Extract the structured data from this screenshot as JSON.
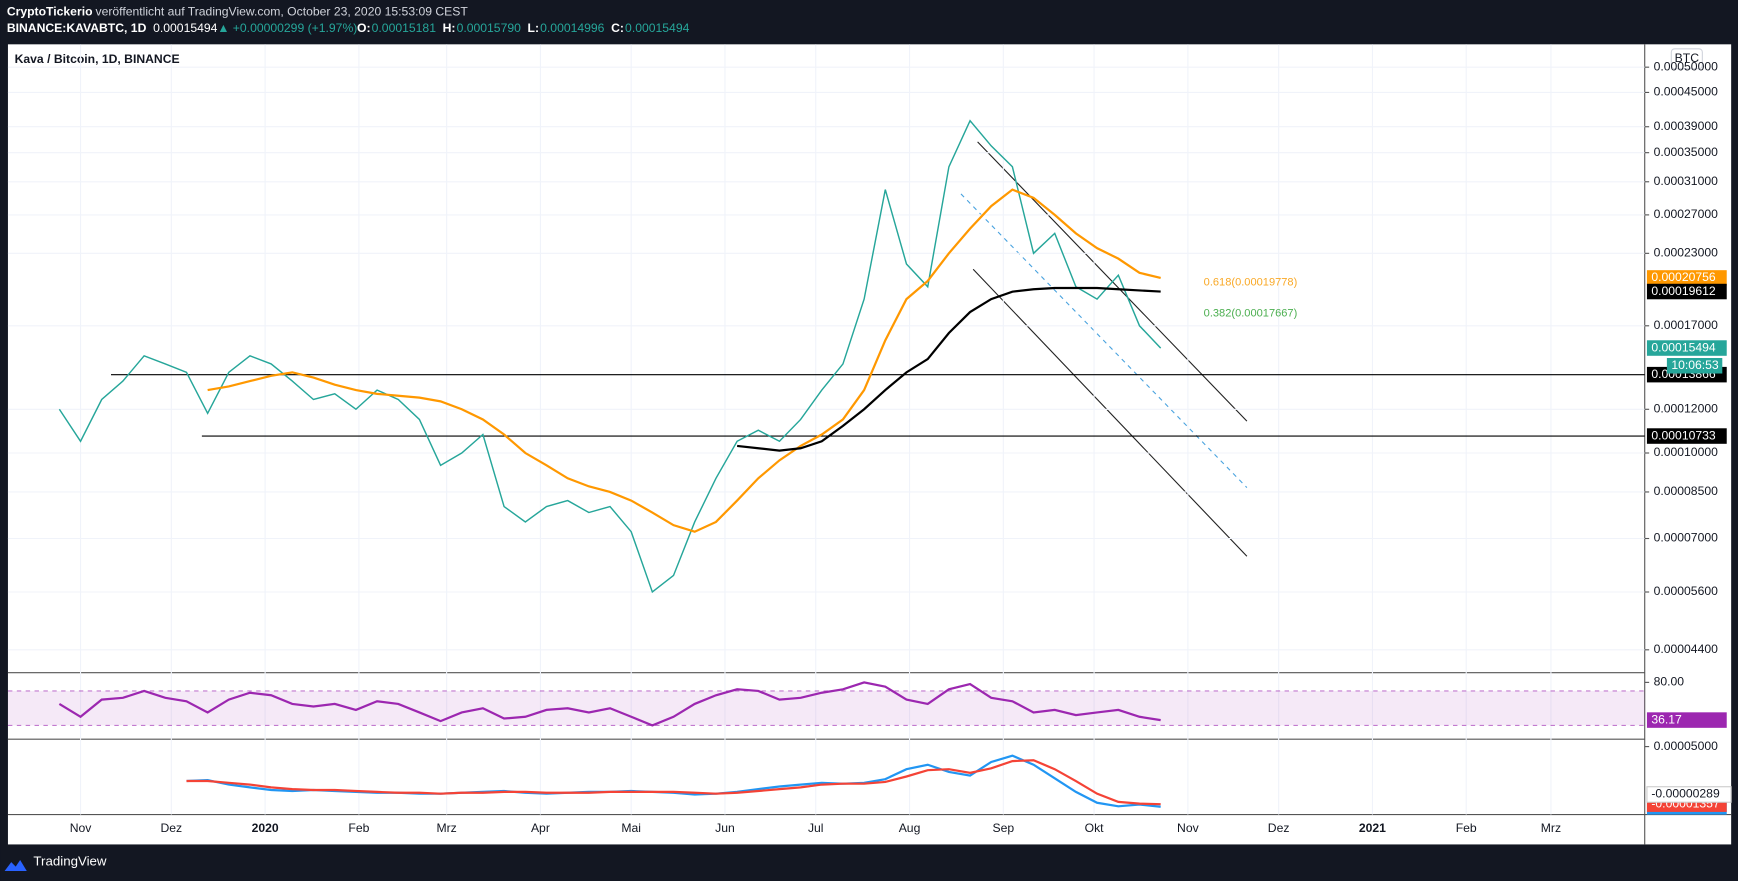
{
  "header": {
    "author": "CryptoTickerio",
    "published": "veröffentlicht auf TradingView.com, October 23, 2020 15:53:09 CEST",
    "symbol": "BINANCE:KAVABTC, 1D",
    "last": "0.00015494",
    "change": "▲ +0.00000299 (+1.97%)",
    "ohlc": [
      {
        "key": "O:",
        "value": "0.00015181"
      },
      {
        "key": "H:",
        "value": "0.00015790"
      },
      {
        "key": "L:",
        "value": "0.00014996"
      },
      {
        "key": "C:",
        "value": "0.00015494"
      }
    ]
  },
  "footer": {
    "brand": "TradingView"
  },
  "chart_data": [
    {
      "type": "line",
      "title": "Kava / Bitcoin, 1D, BINANCE",
      "currency": "BTC",
      "log_scale": true,
      "grid": true,
      "countdown": "10:06:53",
      "x": [
        0,
        7,
        14,
        21,
        28,
        35,
        42,
        49,
        56,
        63,
        70,
        77,
        84,
        91,
        98,
        105,
        112,
        119,
        126,
        133,
        140,
        147,
        154,
        161,
        168,
        175,
        182,
        189,
        196,
        203,
        210,
        217,
        224,
        231,
        238,
        245,
        252,
        259,
        266,
        273,
        280,
        287,
        294,
        301,
        308,
        315,
        322,
        329,
        336,
        343,
        350,
        357,
        364
      ],
      "xlim": [
        -17,
        524
      ],
      "xticks": [
        {
          "value": 7,
          "label": "Nov"
        },
        {
          "value": 37,
          "label": "Dez"
        },
        {
          "value": 68,
          "label": "2020"
        },
        {
          "value": 99,
          "label": "Feb"
        },
        {
          "value": 128,
          "label": "Mrz"
        },
        {
          "value": 159,
          "label": "Apr"
        },
        {
          "value": 189,
          "label": "Mai"
        },
        {
          "value": 220,
          "label": "Jun"
        },
        {
          "value": 250,
          "label": "Jul"
        },
        {
          "value": 281,
          "label": "Aug"
        },
        {
          "value": 312,
          "label": "Sep"
        },
        {
          "value": 342,
          "label": "Okt"
        },
        {
          "value": 373,
          "label": "Nov"
        },
        {
          "value": 403,
          "label": "Dez"
        },
        {
          "value": 434,
          "label": "2021"
        },
        {
          "value": 465,
          "label": "Feb"
        },
        {
          "value": 493,
          "label": "Mrz"
        }
      ],
      "ylim": [
        4e-05,
        0.00055
      ],
      "yticks": [
        {
          "value": 0.0005,
          "label": "0.00050000"
        },
        {
          "value": 0.00045,
          "label": "0.00045000"
        },
        {
          "value": 0.00039,
          "label": "0.00039000"
        },
        {
          "value": 0.00035,
          "label": "0.00035000"
        },
        {
          "value": 0.00031,
          "label": "0.00031000"
        },
        {
          "value": 0.00027,
          "label": "0.00027000"
        },
        {
          "value": 0.00023,
          "label": "0.00023000"
        },
        {
          "value": 0.00017,
          "label": "0.00017000"
        },
        {
          "value": 0.00012,
          "label": "0.00012000"
        },
        {
          "value": 0.0001,
          "label": "0.00010000"
        },
        {
          "value": 8.5e-05,
          "label": "0.00008500"
        },
        {
          "value": 7e-05,
          "label": "0.00007000"
        },
        {
          "value": 5.6e-05,
          "label": "0.00005600"
        },
        {
          "value": 4.4e-05,
          "label": "0.00004400"
        }
      ],
      "levels": [
        0.00013866,
        0.00010733
      ],
      "fib_labels": [
        "0.618(0.00019778)",
        "0.382(0.00017667)"
      ],
      "series": [
        {
          "color": "#26a69a",
          "values": [
            0.00012,
            0.000105,
            0.000125,
            0.000135,
            0.00015,
            0.000145,
            0.00014,
            0.000118,
            0.00014,
            0.00015,
            0.000145,
            0.000135,
            0.000125,
            0.000128,
            0.00012,
            0.00013,
            0.000125,
            0.000115,
            9.5e-05,
            0.0001,
            0.000108,
            8e-05,
            7.5e-05,
            8e-05,
            8.2e-05,
            7.8e-05,
            8e-05,
            7.2e-05,
            5.6e-05,
            6e-05,
            7.5e-05,
            9e-05,
            0.000105,
            0.00011,
            0.000105,
            0.000115,
            0.00013,
            0.000145,
            0.00019,
            0.0003,
            0.00022,
            0.0002,
            0.00033,
            0.0004,
            0.00036,
            0.00033,
            0.00023,
            0.00025,
            0.0002,
            0.00019,
            0.00021,
            0.00017,
            0.00015494
          ]
        },
        {
          "color": "#ff9800",
          "values": [
            null,
            null,
            null,
            null,
            null,
            null,
            null,
            0.00013,
            0.000132,
            0.000135,
            0.000138,
            0.00014,
            0.000137,
            0.000133,
            0.00013,
            0.000128,
            0.000127,
            0.000126,
            0.000124,
            0.00012,
            0.000115,
            0.000108,
            0.0001,
            9.5e-05,
            9e-05,
            8.7e-05,
            8.5e-05,
            8.2e-05,
            7.8e-05,
            7.4e-05,
            7.2e-05,
            7.5e-05,
            8.2e-05,
            9e-05,
            9.7e-05,
            0.000103,
            0.000108,
            0.000115,
            0.00013,
            0.00016,
            0.00019,
            0.000205,
            0.00023,
            0.000255,
            0.00028,
            0.0003,
            0.00029,
            0.00027,
            0.00025,
            0.000235,
            0.000225,
            0.000212,
            0.00020756
          ]
        },
        {
          "color": "#000000",
          "values": [
            null,
            null,
            null,
            null,
            null,
            null,
            null,
            null,
            null,
            null,
            null,
            null,
            null,
            null,
            null,
            null,
            null,
            null,
            null,
            null,
            null,
            null,
            null,
            null,
            null,
            null,
            null,
            null,
            null,
            null,
            null,
            null,
            0.000103,
            0.000102,
            0.000101,
            0.000102,
            0.000105,
            0.000112,
            0.00012,
            0.00013,
            0.00014,
            0.000148,
            0.000165,
            0.00018,
            0.00019,
            0.000196,
            0.000198,
            0.000199,
            0.000199,
            0.000199,
            0.000198,
            0.000197,
            0.00019612
          ]
        }
      ]
    },
    {
      "type": "line",
      "ylim": [
        14,
        90
      ],
      "yticks": [
        {
          "value": 80,
          "label": "80.00"
        }
      ],
      "bands": [
        30,
        70
      ],
      "series": [
        {
          "color": "#9c27b0",
          "values": [
            55,
            40,
            60,
            62,
            70,
            62,
            58,
            45,
            60,
            68,
            65,
            55,
            52,
            55,
            48,
            58,
            55,
            45,
            35,
            45,
            50,
            38,
            40,
            48,
            50,
            45,
            50,
            40,
            30,
            40,
            55,
            65,
            72,
            70,
            60,
            62,
            68,
            72,
            80,
            75,
            60,
            55,
            72,
            78,
            62,
            58,
            45,
            48,
            42,
            45,
            48,
            40,
            36.17
          ]
        }
      ]
    },
    {
      "type": "line",
      "ylim": [
        -2.5e-05,
        5.7e-05
      ],
      "yticks": [
        {
          "value": 5e-05,
          "label": "0.00005000"
        }
      ],
      "histogram_last": -2.89e-06,
      "series": [
        {
          "color": "#2196f3",
          "values": [
            null,
            null,
            null,
            null,
            null,
            null,
            1.2e-05,
            1.3e-05,
            8e-06,
            5e-06,
            2e-06,
            1e-06,
            2e-06,
            1e-06,
            0,
            -1e-06,
            -1e-06,
            -2e-06,
            -2e-06,
            -1e-06,
            0,
            1e-06,
            -1e-06,
            -2e-06,
            -1e-06,
            0,
            0,
            1e-06,
            0,
            -1e-06,
            -3e-06,
            -2e-06,
            0,
            3e-06,
            6e-06,
            8e-06,
            1e-05,
            9e-06,
            1e-05,
            1.4e-05,
            2.5e-05,
            3e-05,
            2.2e-05,
            1.8e-05,
            3.3e-05,
            4e-05,
            3e-05,
            1.5e-05,
            0,
            -1.2e-05,
            -1.6e-05,
            -1.4e-05,
            -1.646e-05
          ]
        },
        {
          "color": "#f44336",
          "values": [
            null,
            null,
            null,
            null,
            null,
            null,
            1.2e-05,
            1.2e-05,
            1e-05,
            8e-06,
            5e-06,
            3e-06,
            2e-06,
            2e-06,
            1e-06,
            0,
            -1e-06,
            -1e-06,
            -2e-06,
            -1e-06,
            -1e-06,
            0,
            0,
            -1e-06,
            -1e-06,
            -1e-06,
            0,
            0,
            0,
            0,
            -1e-06,
            -2e-06,
            -1e-06,
            1e-06,
            3e-06,
            5e-06,
            8e-06,
            9e-06,
            9e-06,
            1.1e-05,
            1.7e-05,
            2.4e-05,
            2.5e-05,
            2.1e-05,
            2.6e-05,
            3.4e-05,
            3.5e-05,
            2.5e-05,
            1.2e-05,
            -2e-06,
            -1.1e-05,
            -1.3e-05,
            -1.357e-05
          ]
        }
      ]
    }
  ]
}
